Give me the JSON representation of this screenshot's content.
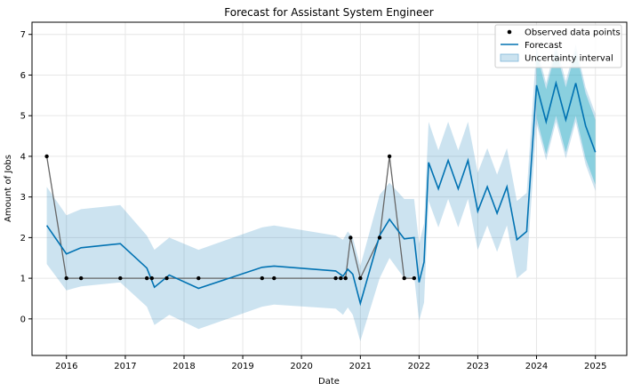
{
  "chart_data": {
    "type": "line",
    "title": "Forecast for Assistant System Engineer",
    "xlabel": "Date",
    "ylabel": "Amount of Jobs",
    "x_is_date": true,
    "xlim": [
      "2015-06-01",
      "2025-07-15"
    ],
    "ylim": [
      -0.9,
      7.3
    ],
    "xticks": [
      "2016",
      "2017",
      "2018",
      "2019",
      "2020",
      "2021",
      "2022",
      "2023",
      "2024",
      "2025"
    ],
    "yticks": [
      0,
      1,
      2,
      3,
      4,
      5,
      6,
      7
    ],
    "grid": true,
    "legend": {
      "position": "top-right",
      "entries": [
        "Observed data points",
        "Forecast",
        "Uncertainty interval"
      ]
    },
    "colors": {
      "observed": "#000000",
      "observed_line": "#666666",
      "forecast": "#0072B2",
      "uncertainty": "#7fb6d9",
      "uncertainty_dark": "#39b8c9"
    },
    "observed": [
      [
        "2015-09-01",
        4
      ],
      [
        "2016-01-01",
        1
      ],
      [
        "2016-04-01",
        1
      ],
      [
        "2016-12-01",
        1
      ],
      [
        "2017-05-15",
        1
      ],
      [
        "2017-06-15",
        1
      ],
      [
        "2017-09-15",
        1
      ],
      [
        "2018-04-01",
        1
      ],
      [
        "2019-05-01",
        1
      ],
      [
        "2019-07-15",
        1
      ],
      [
        "2020-08-01",
        1
      ],
      [
        "2020-09-01",
        1
      ],
      [
        "2020-10-01",
        1
      ],
      [
        "2020-11-01",
        2
      ],
      [
        "2021-01-01",
        1
      ],
      [
        "2021-05-01",
        2
      ],
      [
        "2021-07-01",
        4
      ],
      [
        "2021-10-01",
        1
      ],
      [
        "2021-12-01",
        1
      ]
    ],
    "series": [
      {
        "name": "Forecast",
        "points": [
          [
            "2015-09-01",
            2.3,
            1.35,
            3.25
          ],
          [
            "2016-01-01",
            1.6,
            0.7,
            2.55
          ],
          [
            "2016-04-01",
            1.75,
            0.8,
            2.7
          ],
          [
            "2016-12-01",
            1.85,
            0.9,
            2.8
          ],
          [
            "2017-05-15",
            1.25,
            0.3,
            2.05
          ],
          [
            "2017-07-01",
            0.78,
            -0.15,
            1.7
          ],
          [
            "2017-10-01",
            1.08,
            0.1,
            2.0
          ],
          [
            "2018-04-01",
            0.75,
            -0.25,
            1.7
          ],
          [
            "2019-05-01",
            1.27,
            0.3,
            2.25
          ],
          [
            "2019-07-15",
            1.3,
            0.35,
            2.3
          ],
          [
            "2020-08-01",
            1.18,
            0.25,
            2.05
          ],
          [
            "2020-09-15",
            1.05,
            0.1,
            1.95
          ],
          [
            "2020-10-15",
            1.22,
            0.28,
            2.15
          ],
          [
            "2020-11-15",
            1.1,
            0.1,
            2.0
          ],
          [
            "2021-01-01",
            0.38,
            -0.55,
            1.3
          ],
          [
            "2021-05-01",
            2.05,
            1.0,
            3.05
          ],
          [
            "2021-07-01",
            2.45,
            1.5,
            3.35
          ],
          [
            "2021-10-01",
            1.97,
            1.0,
            2.95
          ],
          [
            "2021-12-01",
            2.0,
            1.05,
            2.95
          ],
          [
            "2022-01-01",
            0.9,
            -0.05,
            1.85
          ],
          [
            "2022-02-01",
            1.4,
            0.4,
            2.35
          ],
          [
            "2022-03-01",
            3.85,
            2.9,
            4.85
          ],
          [
            "2022-05-01",
            3.2,
            2.25,
            4.15
          ],
          [
            "2022-07-01",
            3.9,
            2.95,
            4.85
          ],
          [
            "2022-09-01",
            3.2,
            2.25,
            4.15
          ],
          [
            "2022-11-01",
            3.9,
            2.95,
            4.85
          ],
          [
            "2023-01-01",
            2.65,
            1.7,
            3.6
          ],
          [
            "2023-03-01",
            3.25,
            2.3,
            4.2
          ],
          [
            "2023-05-01",
            2.6,
            1.65,
            3.55
          ],
          [
            "2023-07-01",
            3.25,
            2.3,
            4.2
          ],
          [
            "2023-09-01",
            1.95,
            1.0,
            2.9
          ],
          [
            "2023-11-01",
            2.15,
            1.2,
            3.1
          ],
          [
            "2024-01-01",
            5.75,
            4.8,
            6.7
          ],
          [
            "2024-03-01",
            4.85,
            3.9,
            5.8
          ],
          [
            "2024-05-01",
            5.8,
            4.85,
            6.75
          ],
          [
            "2024-07-01",
            4.9,
            3.95,
            5.85
          ],
          [
            "2024-09-01",
            5.8,
            4.85,
            6.75
          ],
          [
            "2024-11-01",
            4.75,
            3.8,
            5.7
          ],
          [
            "2025-01-01",
            4.1,
            3.15,
            5.05
          ]
        ]
      }
    ]
  }
}
